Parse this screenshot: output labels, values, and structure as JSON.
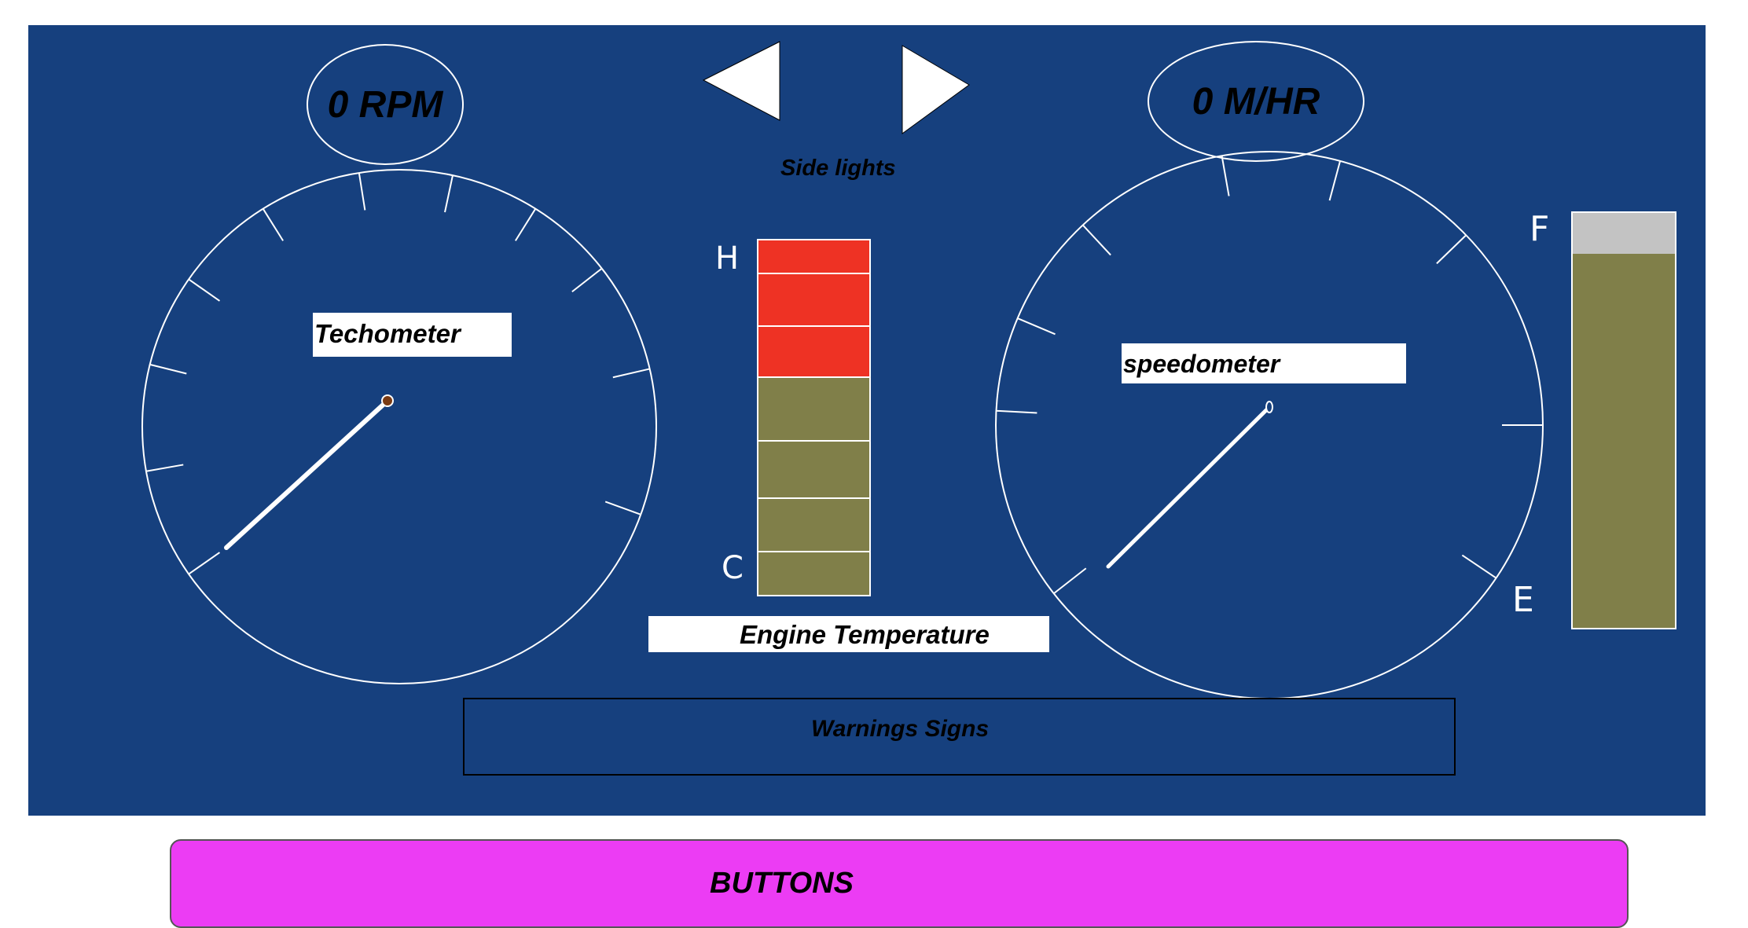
{
  "tachometer": {
    "label": "Techometer",
    "readout": "0 RPM",
    "needle_fraction": 0.0
  },
  "speedometer": {
    "label": "speedometer",
    "readout": "0 M/HR",
    "needle_fraction": 0.0
  },
  "side_lights": {
    "label": "Side lights"
  },
  "engine_temperature": {
    "label": "Engine Temperature",
    "hot_label": "H",
    "cold_label": "C",
    "segments_lit": 3,
    "segments_total": 7,
    "hot_color": "#ee3224",
    "normal_color": "#807f49"
  },
  "fuel": {
    "full_label": "F",
    "empty_label": "E",
    "level_fraction": 0.9,
    "fill_color": "#807f49",
    "empty_color": "#c3c3c3"
  },
  "warnings": {
    "label": "Warnings Signs"
  },
  "buttons": {
    "label": "BUTTONS"
  },
  "colors": {
    "dashboard": "#16407e",
    "buttons_bar": "#ec3cf4"
  }
}
